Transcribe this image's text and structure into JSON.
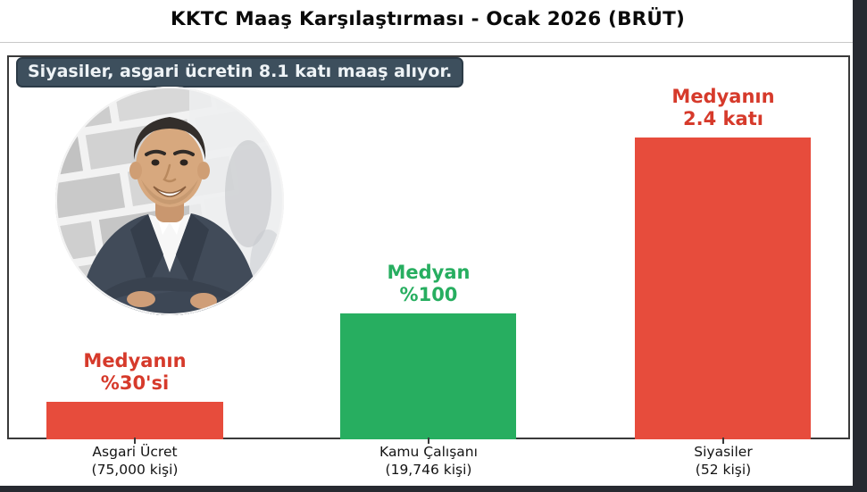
{
  "header": {
    "title": "KKTC Maaş Karşılaştırması - Ocak 2026 (BRÜT)"
  },
  "annotation": {
    "text": "Siyasiler, asgari ücretin 8.1 katı maaş alıyor.",
    "bg_color": "#3d4f5d",
    "text_color": "#eef3f6"
  },
  "photo": {
    "icon": "politician-portrait-photo",
    "description": "Circular photo of a smiling man in a dark suit with crossed arms against a gray stone wall"
  },
  "chart_data": {
    "type": "bar",
    "title": "KKTC Maaş Karşılaştırması - Ocak 2026 (BRÜT)",
    "categories": [
      "Asgari Ücret",
      "Kamu Çalışanı",
      "Siyasiler"
    ],
    "category_sublabels": [
      "(75,000 kişi)",
      "(19,746 kişi)",
      "(52 kişi)"
    ],
    "values": [
      30,
      100,
      240
    ],
    "value_unit": "percent_of_median_salary",
    "bar_labels": [
      {
        "line1": "Medyanın",
        "line2": "%30'si"
      },
      {
        "line1": "Medyan",
        "line2": "%100"
      },
      {
        "line1": "Medyanın",
        "line2": "2.4 katı"
      }
    ],
    "bar_colors": [
      "#e74c3c",
      "#27ae60",
      "#e74c3c"
    ],
    "label_colors": [
      "#d63a2b",
      "#27ae60",
      "#d63a2b"
    ],
    "ylim": [
      0,
      300
    ],
    "grid": false,
    "legend": "none",
    "annotation": "Siyasiler, asgari ücretin 8.1 katı maaş alıyor."
  },
  "colors": {
    "red": "#e74c3c",
    "green": "#27ae60",
    "frame": "#3a3a3a",
    "edge_strip": "#272a31",
    "background": "#ffffff"
  }
}
